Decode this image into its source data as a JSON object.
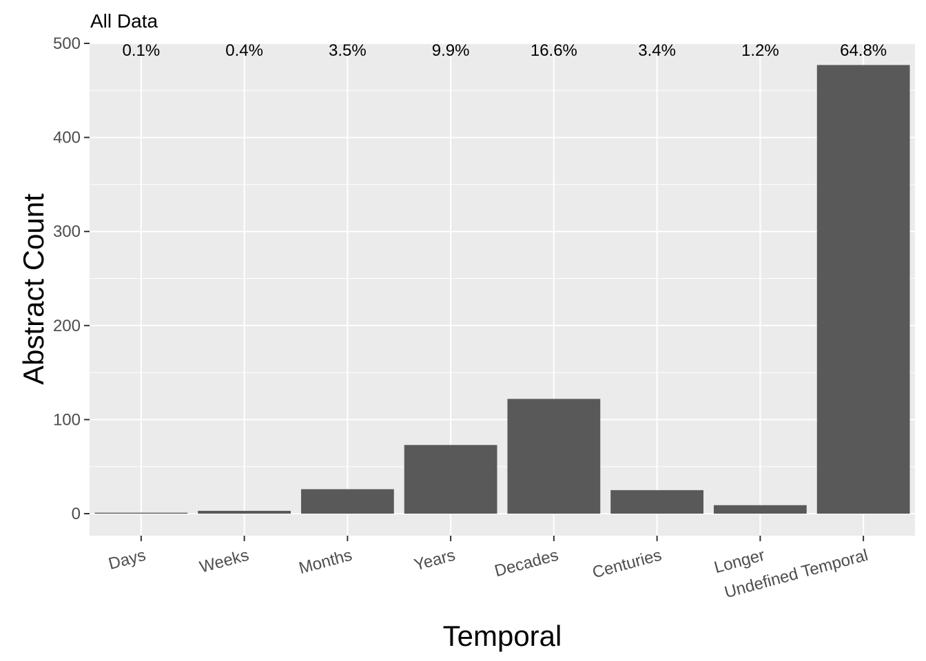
{
  "chart_data": {
    "type": "bar",
    "title": "All Data",
    "xlabel": "Temporal",
    "ylabel": "Abstract Count",
    "categories": [
      "Days",
      "Weeks",
      "Months",
      "Years",
      "Decades",
      "Centuries",
      "Longer",
      "Undefined Temporal"
    ],
    "values": [
      1,
      3,
      26,
      73,
      122,
      25,
      9,
      477
    ],
    "percent_labels": [
      "0.1%",
      "0.4%",
      "3.5%",
      "9.9%",
      "16.6%",
      "3.4%",
      "1.2%",
      "64.8%"
    ],
    "ylim": [
      -24,
      500
    ],
    "yticks": [
      0,
      100,
      200,
      300,
      400,
      500
    ],
    "ytick_labels": [
      "0",
      "100",
      "200",
      "300",
      "400",
      "500"
    ],
    "grid": true,
    "colors": {
      "panel": "#ebebeb",
      "grid": "#ffffff",
      "bar": "#595959",
      "tick": "#333333"
    }
  }
}
